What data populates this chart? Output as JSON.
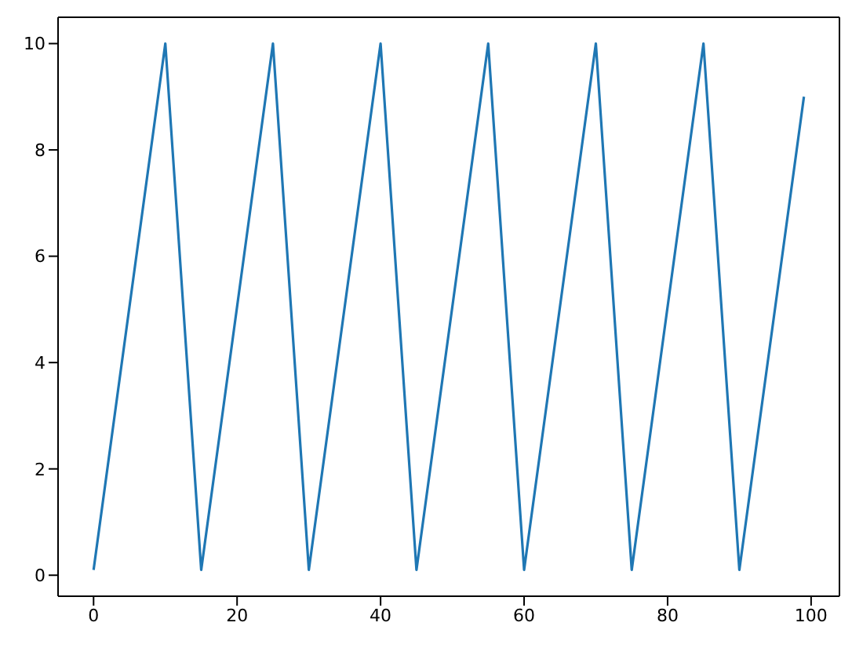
{
  "chart_data": {
    "type": "line",
    "x": [
      0,
      10,
      15,
      25,
      30,
      40,
      45,
      55,
      60,
      70,
      75,
      85,
      90,
      99
    ],
    "values": [
      0.1,
      10,
      0.1,
      10,
      0.1,
      10,
      0.1,
      10,
      0.1,
      10,
      0.1,
      10,
      0.1,
      9
    ],
    "color": "#1f77b4",
    "xlim": [
      -4.95,
      103.95
    ],
    "ylim": [
      -0.395,
      10.495
    ],
    "xticks": [
      0,
      20,
      40,
      60,
      80,
      100
    ],
    "yticks": [
      0,
      2,
      4,
      6,
      8,
      10
    ],
    "marker": "none",
    "line_style": "solid"
  }
}
